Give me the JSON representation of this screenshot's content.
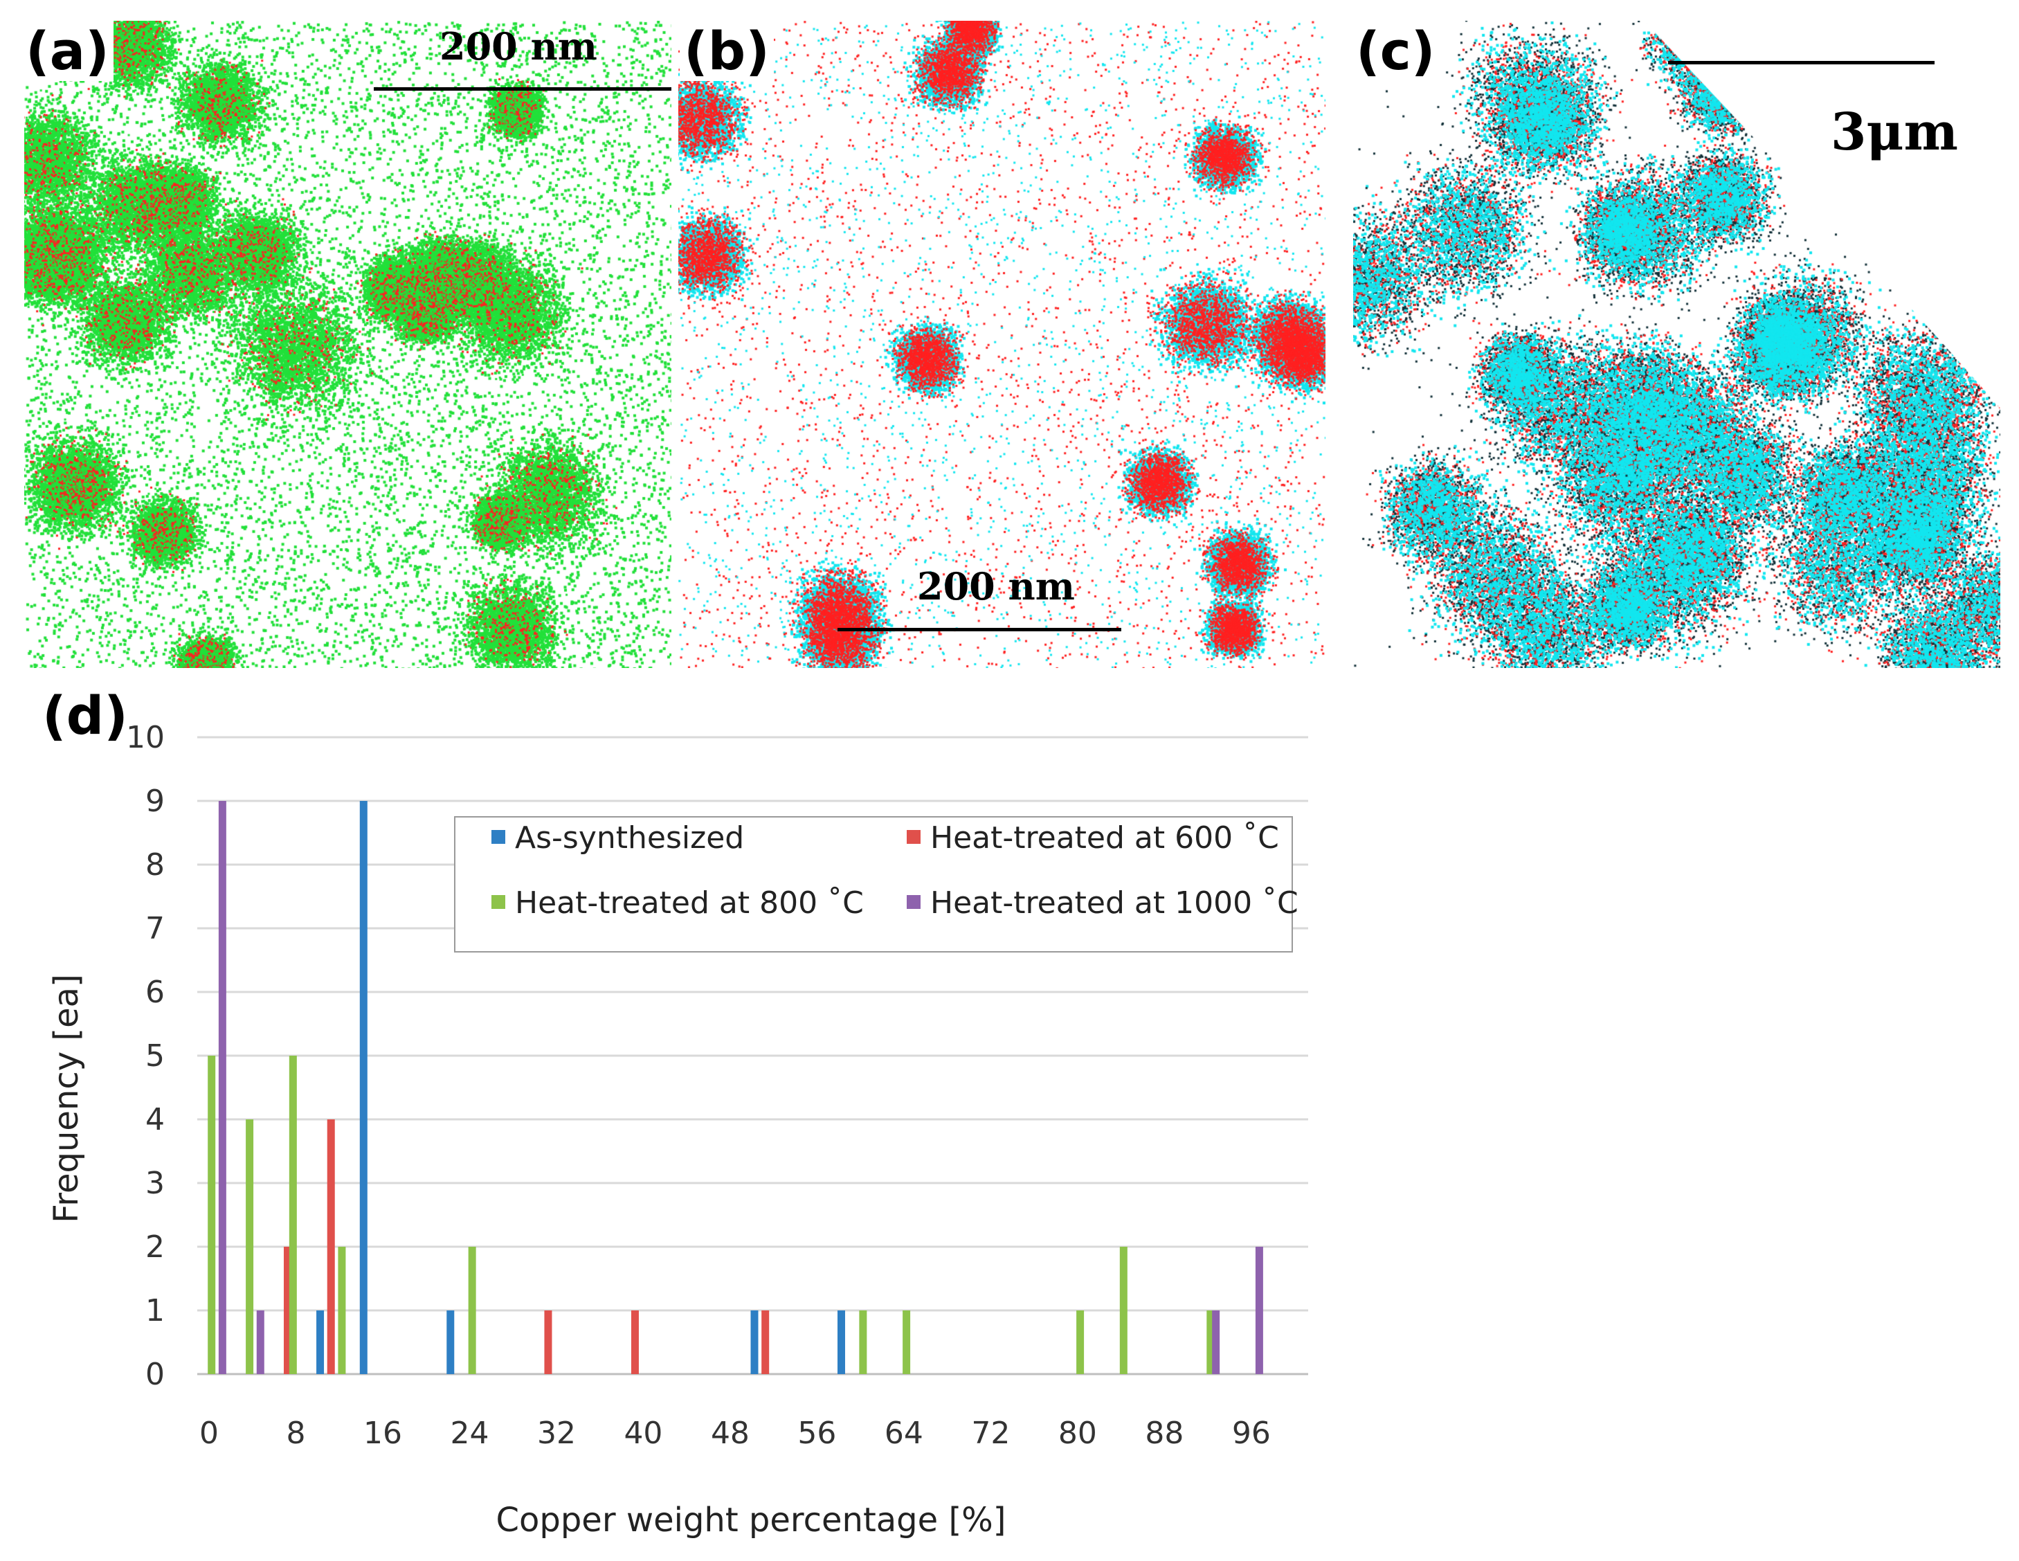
{
  "panels": {
    "a": {
      "label": "(a)",
      "scale_text": "200 nm"
    },
    "b": {
      "label": "(b)",
      "scale_text": "200 nm"
    },
    "c": {
      "label": "(c)",
      "scale_text": "3μm"
    },
    "d": {
      "label": "(d)"
    }
  },
  "colors": {
    "green": "#22e03a",
    "red": "#ff2020",
    "cyan": "#12e6ef",
    "dark": "#123038",
    "as_synthesized": "#2e7fc4",
    "t600": "#e0504b",
    "t800": "#8dc34a",
    "t1000": "#8e62ad",
    "grid": "#d9d9d9",
    "axis": "#bfbfbf"
  },
  "chart_data": {
    "type": "bar",
    "title": "",
    "xlabel": "Copper weight percentage [%]",
    "ylabel": "Frequency [ea]",
    "xlim": [
      0,
      102
    ],
    "ylim": [
      0,
      10
    ],
    "xticks": [
      "0",
      "8",
      "16",
      "24",
      "32",
      "40",
      "48",
      "56",
      "64",
      "72",
      "80",
      "88",
      "96"
    ],
    "yticks": [
      "0",
      "1",
      "2",
      "3",
      "4",
      "5",
      "6",
      "7",
      "8",
      "9",
      "10"
    ],
    "grid": true,
    "legend_position": "top-right",
    "series": [
      {
        "name": "As-synthesized",
        "color": "#2e7fc4",
        "points": [
          [
            11,
            1
          ],
          [
            15,
            9
          ],
          [
            23,
            1
          ],
          [
            51,
            1
          ],
          [
            59,
            1
          ]
        ]
      },
      {
        "name": "Heat-treated at 600 ˚C",
        "color": "#e0504b",
        "points": [
          [
            8,
            2
          ],
          [
            12,
            4
          ],
          [
            32,
            1
          ],
          [
            40,
            1
          ],
          [
            52,
            1
          ]
        ]
      },
      {
        "name": "Heat-treated at 800 ˚C",
        "color": "#8dc34a",
        "points": [
          [
            1,
            5
          ],
          [
            4.5,
            4
          ],
          [
            8.5,
            5
          ],
          [
            13,
            2
          ],
          [
            25,
            2
          ],
          [
            61,
            1
          ],
          [
            65,
            1
          ],
          [
            81,
            1
          ],
          [
            85,
            2
          ],
          [
            93,
            1
          ]
        ]
      },
      {
        "name": "Heat-treated at 1000 ˚C",
        "color": "#8e62ad",
        "points": [
          [
            2,
            9
          ],
          [
            5.5,
            1
          ],
          [
            93.5,
            1
          ],
          [
            97.5,
            2
          ]
        ]
      }
    ]
  }
}
